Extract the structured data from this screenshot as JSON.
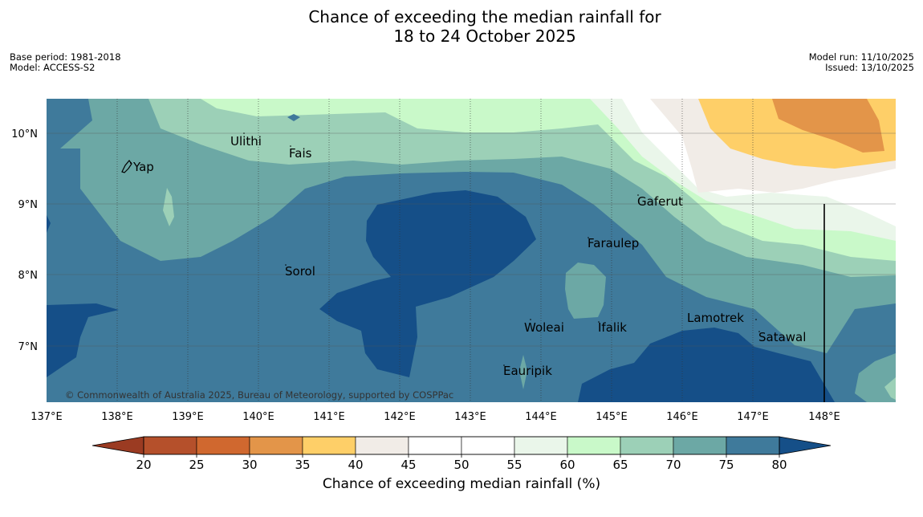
{
  "title": {
    "line1": "Chance of exceeding the median rainfall for",
    "line2": "18 to 24 October 2025"
  },
  "meta": {
    "base_period": "Base period: 1981-2018",
    "model": "Model: ACCESS-S2",
    "model_run": "Model run: 11/10/2025",
    "issued": "Issued: 13/10/2025"
  },
  "map": {
    "copyright": "© Commonwealth of Australia 2025, Bureau of Meteorology, supported by COSPPac",
    "lon_labels": [
      "137°E",
      "138°E",
      "139°E",
      "140°E",
      "141°E",
      "142°E",
      "143°E",
      "144°E",
      "145°E",
      "146°E",
      "147°E",
      "148°E"
    ],
    "lat_labels": [
      "10°N",
      "9°N",
      "8°N",
      "7°N"
    ],
    "places": [
      "Yap",
      "Ulithi",
      "Fais",
      "Gaferut",
      "Faraulep",
      "Sorol",
      "Woleai",
      "Ifalik",
      "Lamotrek",
      "Satawal",
      "Eauripik"
    ]
  },
  "colorbar": {
    "label": "Chance of exceeding median rainfall (%)",
    "ticks": [
      "20",
      "25",
      "30",
      "35",
      "40",
      "45",
      "50",
      "55",
      "60",
      "65",
      "70",
      "75",
      "80"
    ],
    "colors": [
      "#b5502b",
      "#d0682f",
      "#e39549",
      "#fecf68",
      "#f1ece7",
      "#ffffff",
      "#ffffff",
      "#eaf6ea",
      "#c9f9c9",
      "#9cd0b7",
      "#6ca8a5",
      "#3f7a9b"
    ],
    "extend_low": "#9b3b22",
    "extend_high": "#154f88"
  },
  "colors": {
    "c75_80": "#3f7a9b",
    "c80_plus": "#154f88",
    "c70_75": "#6ca8a5",
    "c65_70": "#9cd0b7",
    "c60_65": "#c9f9c9",
    "c55_60": "#eaf6ea",
    "c45_55": "#ffffff",
    "c40_45": "#f1ece7",
    "c35_40": "#fecf68",
    "c30_35": "#e39549"
  }
}
